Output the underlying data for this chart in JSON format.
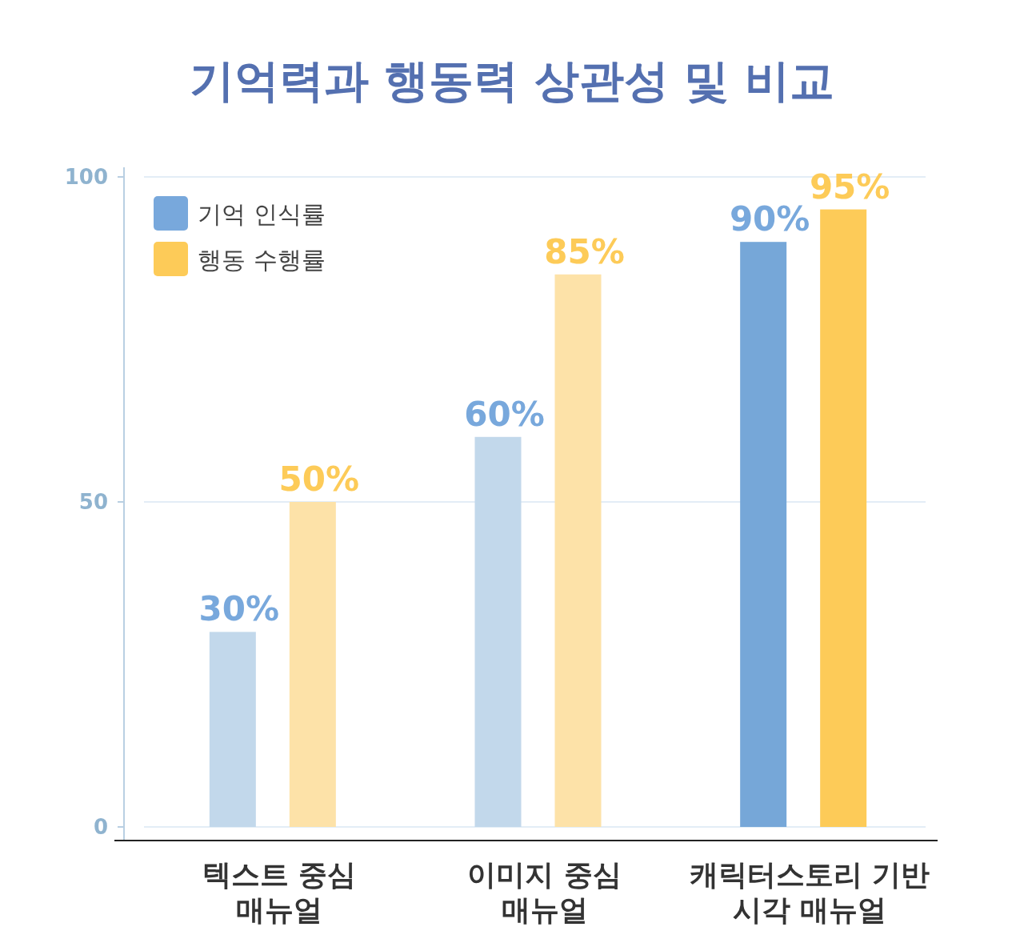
{
  "chart_data": {
    "type": "bar",
    "title": "기억력과 행동력 상관성 및 비교",
    "categories": [
      "텍스트 중심\n매뉴얼",
      "이미지 중심\n매뉴얼",
      "캐릭터스토리 기반\n시각 매뉴얼"
    ],
    "series": [
      {
        "name": "기억 인식률",
        "color": "#78a8dc",
        "colors": [
          "#c2d8eb",
          "#c2d8eb",
          "#76a7d8"
        ],
        "values": [
          30,
          60,
          90
        ],
        "value_labels": [
          "30%",
          "60%",
          "90%"
        ]
      },
      {
        "name": "행동 수행률",
        "color": "#fdcb58",
        "colors": [
          "#fde2a8",
          "#fde2a8",
          "#fdcb58"
        ],
        "values": [
          50,
          85,
          95
        ],
        "value_labels": [
          "50%",
          "85%",
          "95%"
        ]
      }
    ],
    "ylim": [
      0,
      100
    ],
    "yticks": [
      0,
      50,
      100
    ],
    "grid": "y",
    "legend": "top left"
  }
}
